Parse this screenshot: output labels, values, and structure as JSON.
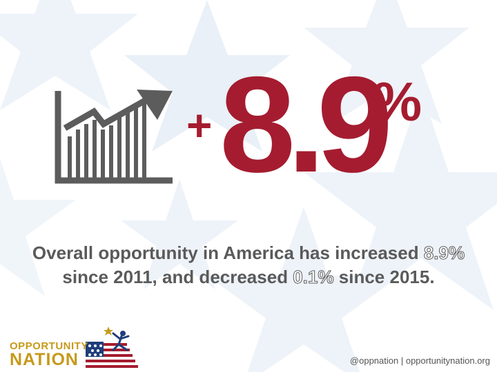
{
  "hero": {
    "plus": "+",
    "number": "8.9",
    "percent": "%"
  },
  "headline": {
    "line1_a": "Overall opportunity in America has increased ",
    "line1_b": "8.9%",
    "line2_a": "since 2011, and decreased ",
    "line2_b": "0.1%",
    "line2_c": " since 2015."
  },
  "logo": {
    "word1": "OPPORTUNITY",
    "word2": "NATION"
  },
  "footer": {
    "handle": "@oppnation",
    "separator": " | ",
    "site": "opportunitynation.org"
  },
  "colors": {
    "accent_red": "#a51c30",
    "text_gray": "#5a5a5a",
    "logo_gold": "#c69a1a",
    "star_bg": "#e8eff7"
  },
  "icons": {
    "growth": "bar-chart-with-rising-arrow-icon",
    "logo_mark": "flag-with-star-figure-icon"
  }
}
